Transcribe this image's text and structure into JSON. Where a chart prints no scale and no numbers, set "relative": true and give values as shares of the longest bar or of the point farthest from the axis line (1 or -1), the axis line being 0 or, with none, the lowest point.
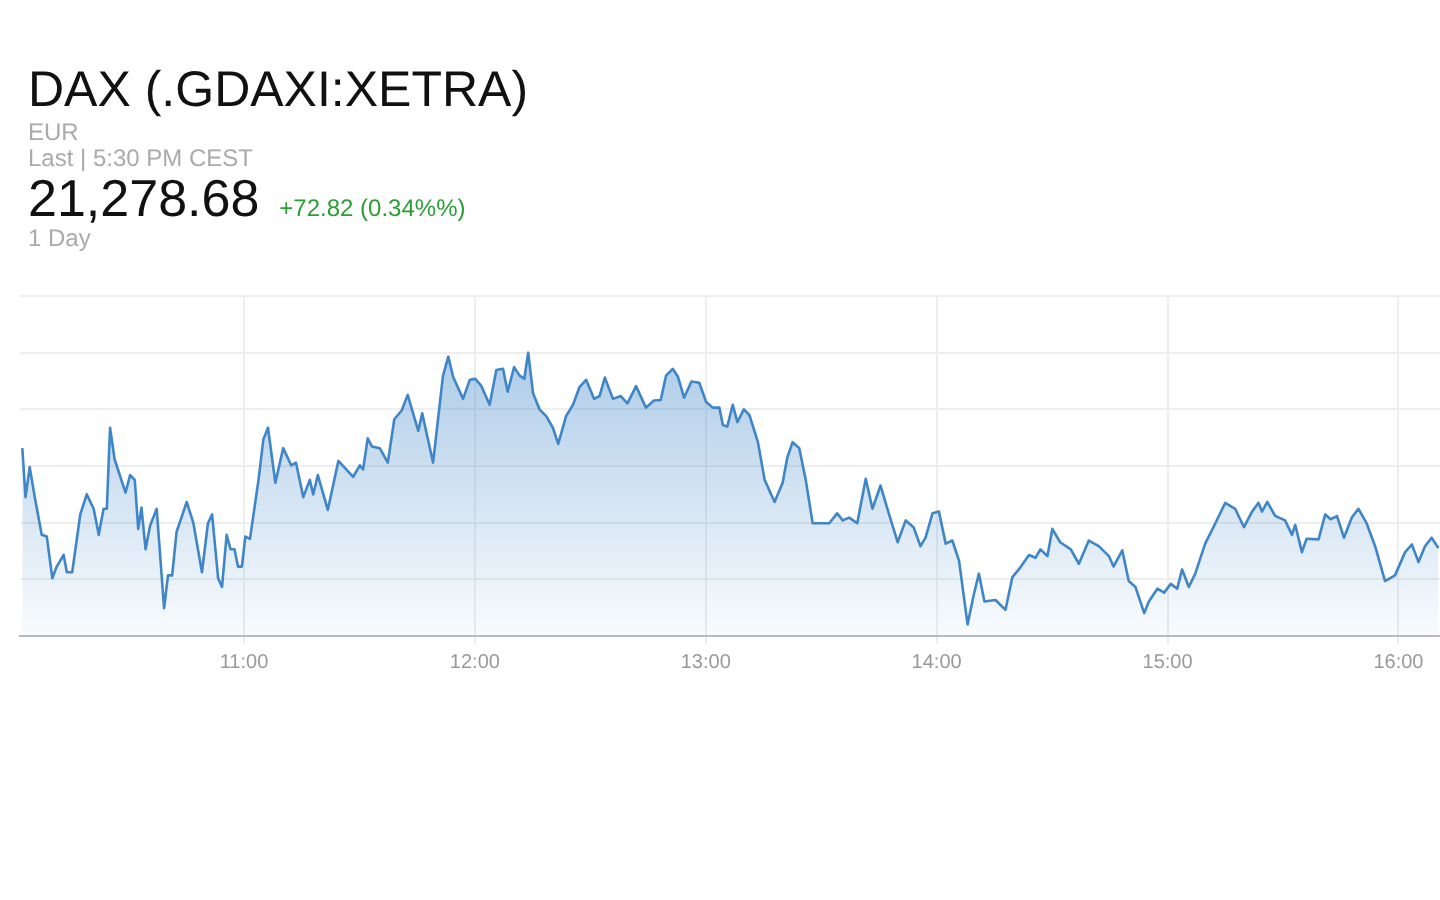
{
  "chart_data": {
    "type": "area",
    "title": "DAX (.GDAXI:XETRA)",
    "annotations": [
      "EUR",
      "Last | 5:30 PM CEST",
      "21,278.68",
      "+72.82 (0.34%%)",
      "1 Day"
    ],
    "relative": true,
    "grid": true,
    "marker": "none",
    "legend": false,
    "xlim": [
      10.03,
      16.18
    ],
    "xticks": [
      {
        "value": 11,
        "label": "11:00"
      },
      {
        "value": 12,
        "label": "12:00"
      },
      {
        "value": 13,
        "label": "13:00"
      },
      {
        "value": 14,
        "label": "14:00"
      },
      {
        "value": 15,
        "label": "15:00"
      },
      {
        "value": 16,
        "label": "16:00"
      }
    ],
    "series": [
      {
        "color": "#3f86c8",
        "x": [
          10.04,
          10.054,
          10.072,
          10.094,
          10.124,
          10.146,
          10.17,
          10.189,
          10.219,
          10.233,
          10.256,
          10.291,
          10.319,
          10.349,
          10.371,
          10.392,
          10.406,
          10.42,
          10.44,
          10.487,
          10.507,
          10.527,
          10.542,
          10.556,
          10.574,
          10.593,
          10.622,
          10.654,
          10.671,
          10.689,
          10.708,
          10.752,
          10.781,
          10.818,
          10.844,
          10.862,
          10.888,
          10.905,
          10.925,
          10.942,
          10.959,
          10.974,
          10.991,
          11.006,
          11.026,
          11.063,
          11.084,
          11.104,
          11.136,
          11.17,
          11.205,
          11.225,
          11.257,
          11.285,
          11.3,
          11.32,
          11.363,
          11.409,
          11.473,
          11.502,
          11.516,
          11.536,
          11.554,
          11.588,
          11.623,
          11.651,
          11.683,
          11.709,
          11.755,
          11.772,
          11.819,
          11.862,
          11.885,
          11.906,
          11.949,
          11.978,
          12.001,
          12.027,
          12.064,
          12.093,
          12.122,
          12.142,
          12.17,
          12.194,
          12.214,
          12.231,
          12.252,
          12.28,
          12.309,
          12.338,
          12.361,
          12.395,
          12.425,
          12.453,
          12.482,
          12.516,
          12.54,
          12.563,
          12.598,
          12.632,
          12.661,
          12.698,
          12.741,
          12.776,
          12.805,
          12.828,
          12.857,
          12.88,
          12.906,
          12.938,
          12.972,
          13.001,
          13.03,
          13.059,
          13.074,
          13.093,
          13.117,
          13.137,
          13.165,
          13.189,
          13.226,
          13.255,
          13.298,
          13.333,
          13.353,
          13.376,
          13.405,
          13.433,
          13.463,
          13.535,
          13.569,
          13.593,
          13.621,
          13.656,
          13.693,
          13.722,
          13.757,
          13.794,
          13.831,
          13.866,
          13.9,
          13.93,
          13.952,
          13.982,
          14.01,
          14.039,
          14.068,
          14.097,
          14.134,
          14.16,
          14.183,
          14.207,
          14.255,
          14.298,
          14.328,
          14.356,
          14.4,
          14.428,
          14.449,
          14.48,
          14.501,
          14.535,
          14.581,
          14.616,
          14.659,
          14.702,
          14.746,
          14.766,
          14.804,
          14.832,
          14.861,
          14.899,
          14.919,
          14.956,
          14.985,
          15.014,
          15.042,
          15.063,
          15.092,
          15.12,
          15.163,
          15.207,
          15.25,
          15.293,
          15.331,
          15.366,
          15.394,
          15.409,
          15.432,
          15.466,
          15.509,
          15.539,
          15.553,
          15.582,
          15.602,
          15.654,
          15.683,
          15.706,
          15.734,
          15.764,
          15.798,
          15.827,
          15.862,
          15.899,
          15.942,
          15.985,
          16.029,
          16.058,
          16.087,
          16.115,
          16.144,
          16.173
        ],
        "values": [
          0.663,
          0.49,
          0.596,
          0.49,
          0.357,
          0.351,
          0.204,
          0.245,
          0.286,
          0.225,
          0.225,
          0.429,
          0.5,
          0.449,
          0.357,
          0.449,
          0.449,
          0.735,
          0.623,
          0.506,
          0.568,
          0.551,
          0.378,
          0.453,
          0.306,
          0.388,
          0.449,
          0.098,
          0.214,
          0.214,
          0.367,
          0.473,
          0.398,
          0.225,
          0.398,
          0.429,
          0.204,
          0.173,
          0.357,
          0.306,
          0.306,
          0.245,
          0.245,
          0.351,
          0.343,
          0.551,
          0.694,
          0.735,
          0.541,
          0.663,
          0.602,
          0.612,
          0.49,
          0.551,
          0.5,
          0.568,
          0.445,
          0.618,
          0.562,
          0.602,
          0.588,
          0.698,
          0.669,
          0.663,
          0.612,
          0.765,
          0.796,
          0.851,
          0.724,
          0.786,
          0.612,
          0.919,
          0.986,
          0.914,
          0.837,
          0.904,
          0.908,
          0.884,
          0.816,
          0.939,
          0.943,
          0.862,
          0.949,
          0.919,
          0.908,
          1.0,
          0.857,
          0.8,
          0.776,
          0.735,
          0.678,
          0.776,
          0.816,
          0.878,
          0.904,
          0.837,
          0.847,
          0.912,
          0.837,
          0.847,
          0.821,
          0.882,
          0.806,
          0.831,
          0.833,
          0.919,
          0.943,
          0.914,
          0.841,
          0.898,
          0.894,
          0.827,
          0.806,
          0.806,
          0.745,
          0.739,
          0.816,
          0.755,
          0.8,
          0.78,
          0.684,
          0.551,
          0.473,
          0.541,
          0.629,
          0.684,
          0.663,
          0.551,
          0.398,
          0.398,
          0.433,
          0.408,
          0.418,
          0.398,
          0.555,
          0.449,
          0.531,
          0.429,
          0.331,
          0.408,
          0.384,
          0.317,
          0.347,
          0.433,
          0.439,
          0.326,
          0.337,
          0.265,
          0.041,
          0.143,
          0.22,
          0.122,
          0.127,
          0.092,
          0.208,
          0.235,
          0.286,
          0.276,
          0.306,
          0.282,
          0.378,
          0.331,
          0.306,
          0.255,
          0.337,
          0.317,
          0.282,
          0.245,
          0.302,
          0.194,
          0.173,
          0.081,
          0.122,
          0.167,
          0.153,
          0.184,
          0.167,
          0.235,
          0.173,
          0.22,
          0.326,
          0.398,
          0.47,
          0.449,
          0.384,
          0.439,
          0.47,
          0.439,
          0.473,
          0.424,
          0.408,
          0.357,
          0.392,
          0.296,
          0.343,
          0.341,
          0.429,
          0.412,
          0.423,
          0.347,
          0.418,
          0.449,
          0.398,
          0.317,
          0.194,
          0.214,
          0.296,
          0.323,
          0.261,
          0.317,
          0.347,
          0.31
        ]
      }
    ]
  }
}
